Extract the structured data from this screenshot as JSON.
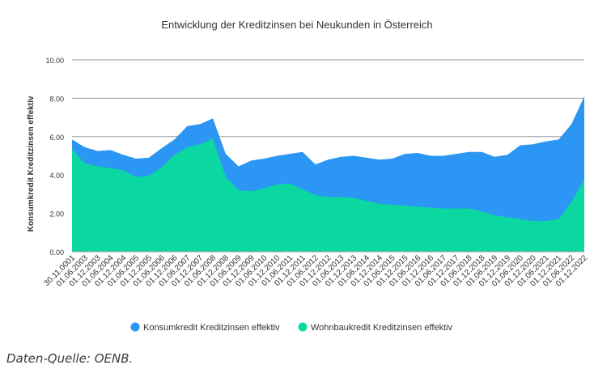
{
  "source_note": "Daten-Quelle: OENB.",
  "chart_data": {
    "type": "area",
    "title": "Entwicklung der Kreditzinsen bei Neukunden in Österreich",
    "xlabel": "",
    "ylabel": "Konsumkredit Kreditzinsen effektiv",
    "ylim": [
      0,
      10
    ],
    "yticks": [
      "0.00",
      "2.00",
      "4.00",
      "6.00",
      "8.00",
      "10.00"
    ],
    "grid": true,
    "legend_position": "bottom",
    "categories": [
      "30.11.0001",
      "01.06.2003",
      "01.12.2003",
      "01.06.2004",
      "01.12.2004",
      "01.06.2005",
      "01.12.2005",
      "01.06.2006",
      "01.12.2006",
      "01.06.2007",
      "01.12.2007",
      "01.06.2008",
      "01.12.2008",
      "01.06.2009",
      "01.12.2009",
      "01.06.2010",
      "01.12.2010",
      "01.06.2011",
      "01.12.2011",
      "01.06.2012",
      "01.12.2012",
      "01.06.2013",
      "01.12.2013",
      "01.06.2014",
      "01.12.2014",
      "01.06.2015",
      "01.12.2015",
      "01.06.2016",
      "01.12.2016",
      "01.06.2017",
      "01.12.2017",
      "01.06.2018",
      "01.12.2018",
      "01.06.2019",
      "01.12.2019",
      "01.06.2020",
      "01.12.2020",
      "01.06.2021",
      "01.12.2021",
      "01.06.2022",
      "01.12.2022"
    ],
    "series": [
      {
        "name": "Konsumkredit Kreditzinsen effektiv",
        "color": "#2b96f3",
        "values": [
          5.85,
          5.45,
          5.25,
          5.3,
          5.05,
          4.85,
          4.9,
          5.4,
          5.85,
          6.55,
          6.65,
          6.95,
          5.1,
          4.45,
          4.75,
          4.85,
          5.0,
          5.1,
          5.2,
          4.55,
          4.8,
          4.95,
          5.0,
          4.9,
          4.8,
          4.85,
          5.1,
          5.15,
          5.0,
          5.0,
          5.1,
          5.2,
          5.2,
          4.95,
          5.05,
          5.55,
          5.6,
          5.75,
          5.85,
          6.65,
          8.1
        ]
      },
      {
        "name": "Wohnbaukredit Kreditzinsen effektiv",
        "color": "#0bd7a0",
        "values": [
          5.35,
          4.6,
          4.45,
          4.35,
          4.25,
          3.9,
          3.95,
          4.4,
          5.05,
          5.45,
          5.6,
          5.9,
          3.9,
          3.2,
          3.15,
          3.3,
          3.5,
          3.55,
          3.25,
          2.95,
          2.85,
          2.85,
          2.8,
          2.65,
          2.5,
          2.45,
          2.4,
          2.35,
          2.3,
          2.25,
          2.25,
          2.25,
          2.1,
          1.9,
          1.8,
          1.7,
          1.6,
          1.6,
          1.7,
          2.6,
          3.75
        ]
      }
    ]
  }
}
